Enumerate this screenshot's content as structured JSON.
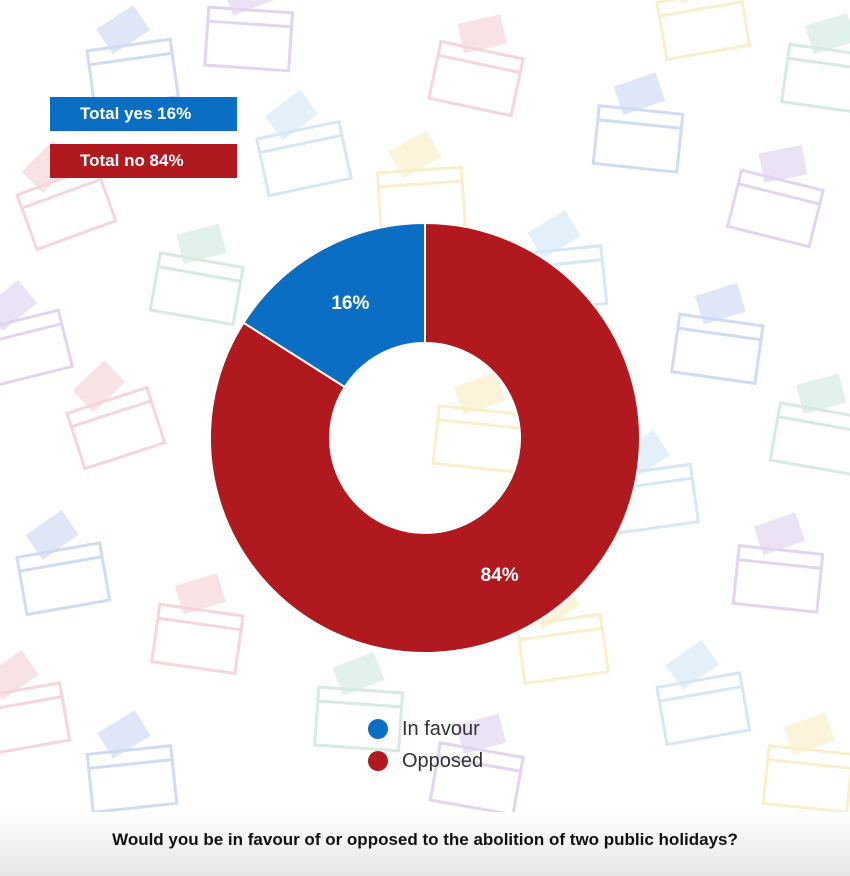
{
  "summary": {
    "yes_label": "Total yes 16%",
    "no_label": "Total no 84%"
  },
  "question": "Would you be in favour of or opposed to the abolition of two public holidays?",
  "colors": {
    "in_favour": "#0a6fc2",
    "opposed": "#b0191d",
    "background": "#ffffff"
  },
  "background_decoration": "ballot-box-icon pattern",
  "chart_data": {
    "type": "pie",
    "donut": true,
    "categories": [
      "In favour",
      "Opposed"
    ],
    "values": [
      16,
      84
    ],
    "data_labels": [
      "16%",
      "84%"
    ],
    "legend": [
      "In favour",
      "Opposed"
    ],
    "legend_position": "bottom"
  }
}
